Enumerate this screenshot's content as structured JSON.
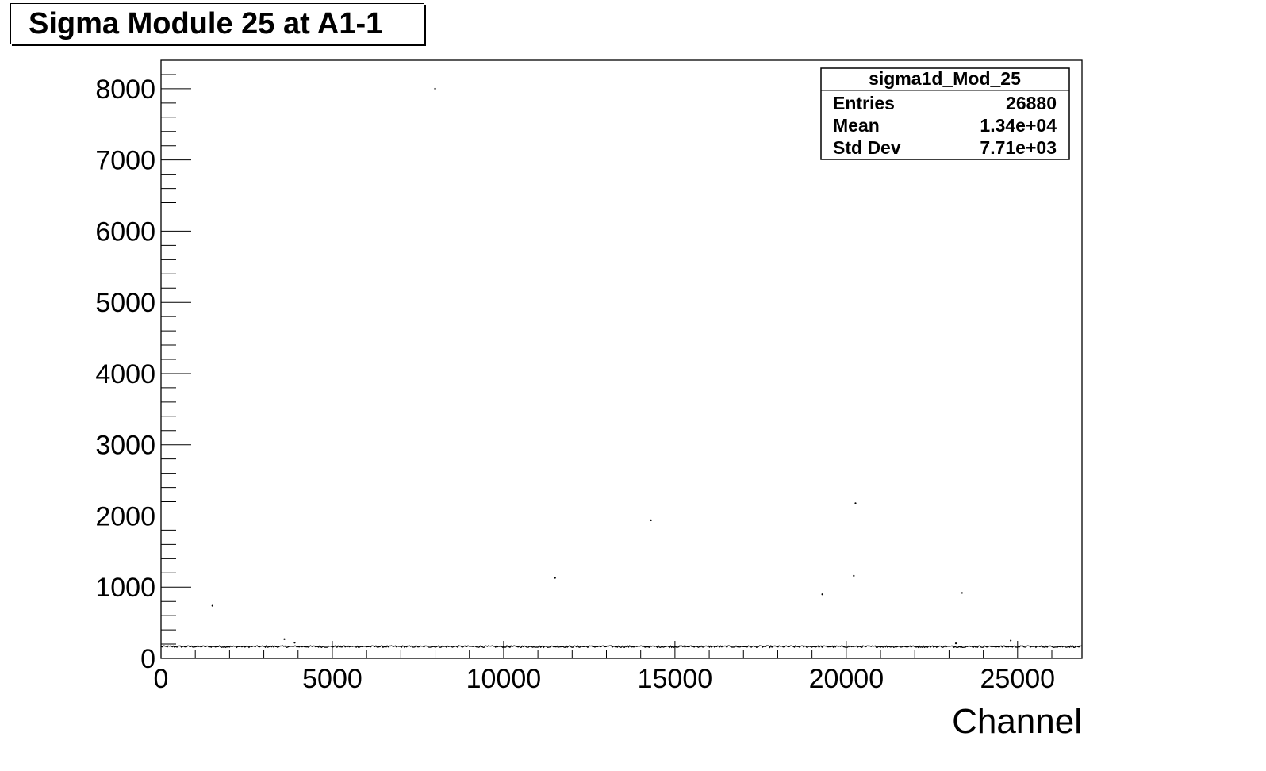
{
  "title": "Sigma Module 25 at A1-1",
  "stats_box": {
    "name": "sigma1d_Mod_25",
    "rows": [
      {
        "label": "Entries",
        "value": "26880"
      },
      {
        "label": "Mean",
        "value": "1.34e+04"
      },
      {
        "label": "Std Dev",
        "value": "7.71e+03"
      }
    ]
  },
  "chart_data": {
    "type": "scatter",
    "title": "Sigma Module 25 at A1-1",
    "xlabel": "Channel",
    "ylabel": "",
    "xlim": [
      0,
      26880
    ],
    "ylim": [
      0,
      8400
    ],
    "x_ticks": [
      0,
      5000,
      10000,
      15000,
      20000,
      25000
    ],
    "y_ticks": [
      0,
      1000,
      2000,
      3000,
      4000,
      5000,
      6000,
      7000,
      8000
    ],
    "grid": false,
    "legend": "top-right stats box",
    "baseline": {
      "name": "",
      "y_typical": 165,
      "y_band": [
        140,
        190
      ],
      "x_range": [
        0,
        26880
      ]
    },
    "outliers": [
      {
        "x": 8000,
        "y": 8000
      },
      {
        "x": 20270,
        "y": 2180
      },
      {
        "x": 14300,
        "y": 1940
      },
      {
        "x": 20220,
        "y": 1160
      },
      {
        "x": 11500,
        "y": 1130
      },
      {
        "x": 19300,
        "y": 900
      },
      {
        "x": 23380,
        "y": 920
      },
      {
        "x": 1500,
        "y": 740
      },
      {
        "x": 3600,
        "y": 270
      },
      {
        "x": 3900,
        "y": 220
      },
      {
        "x": 24800,
        "y": 250
      },
      {
        "x": 23200,
        "y": 210
      }
    ]
  }
}
